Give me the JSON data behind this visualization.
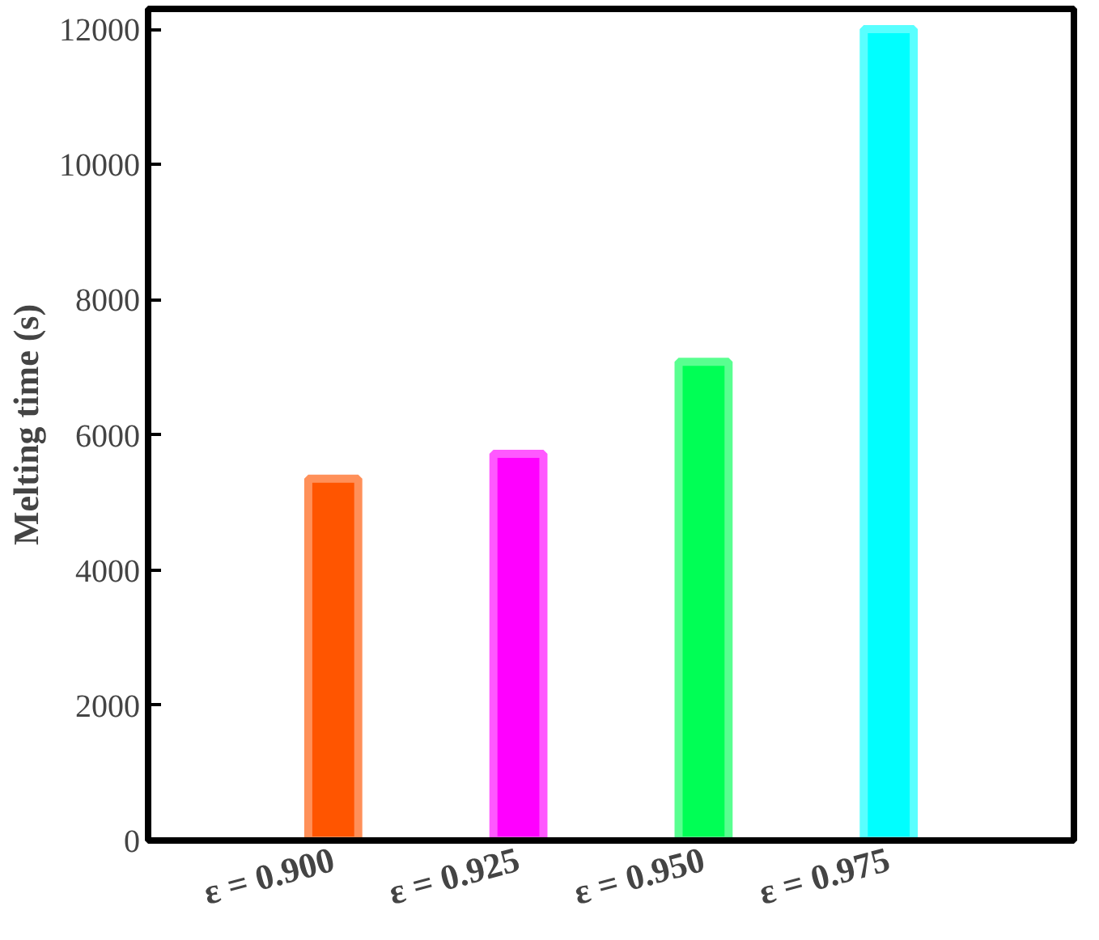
{
  "chart_data": {
    "type": "bar",
    "ylabel": "Melting time (s)",
    "categories": [
      "ε = 0.900",
      "ε = 0.925",
      "ε = 0.950",
      "ε = 0.975"
    ],
    "values": [
      5350,
      5720,
      7080,
      12000
    ],
    "colors": [
      "#ff5500",
      "#ff00ff",
      "#00ff55",
      "#00ffff"
    ],
    "ylim": [
      0,
      12300
    ],
    "yticks": [
      0,
      2000,
      4000,
      6000,
      8000,
      10000,
      12000
    ],
    "grid": false
  }
}
